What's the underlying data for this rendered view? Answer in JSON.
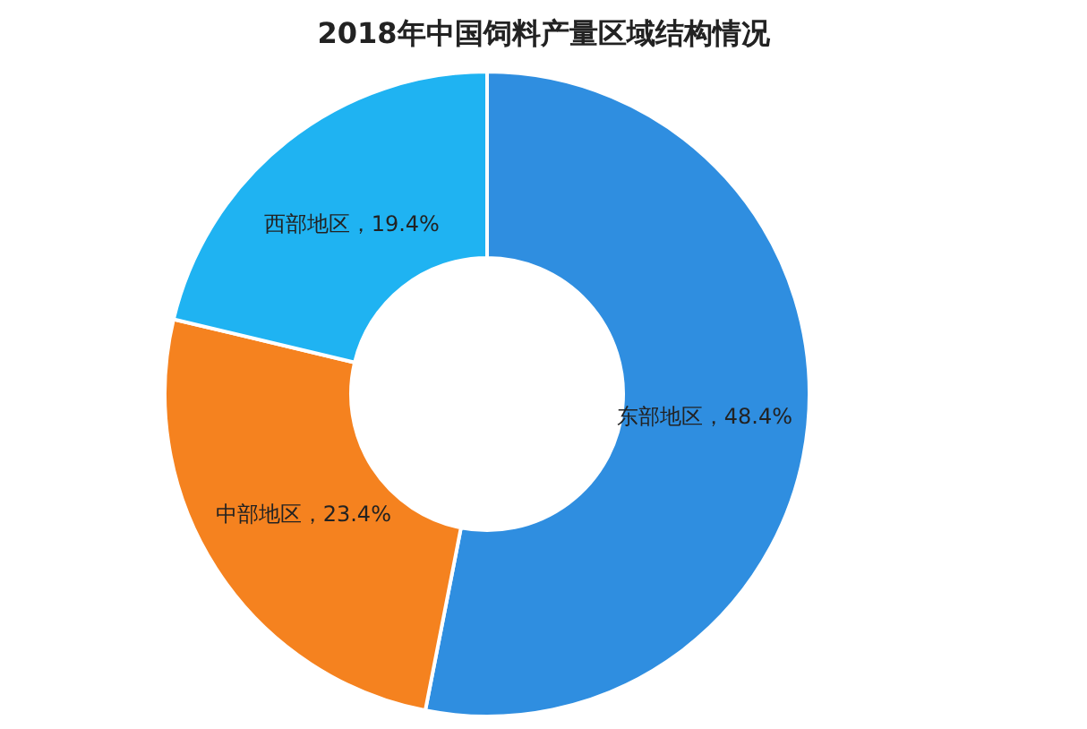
{
  "chart_data": {
    "type": "donut",
    "title": "2018年中国饲料产量区域结构情况",
    "categories": [
      "东部地区",
      "中部地区",
      "西部地区"
    ],
    "values": [
      48.4,
      23.4,
      19.4
    ],
    "colors": [
      "#2f8ee0",
      "#f5821f",
      "#1fb3f2"
    ],
    "value_labels": [
      "48.4%",
      "23.4%",
      "19.4%"
    ],
    "legend": false
  }
}
